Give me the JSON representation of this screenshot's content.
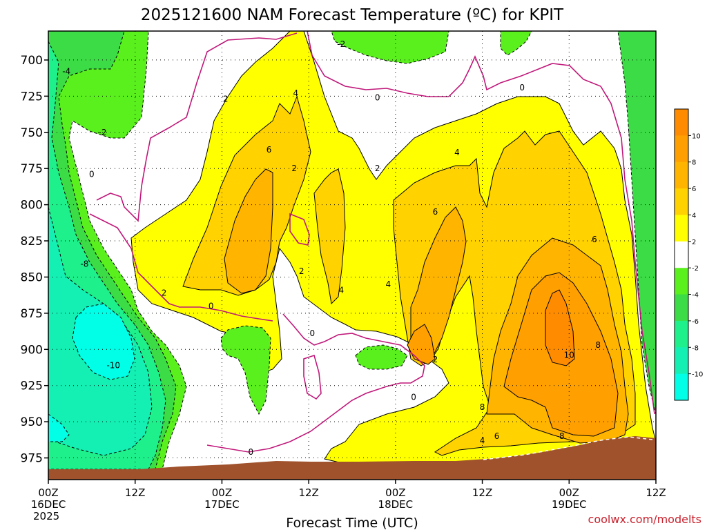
{
  "chart_data": {
    "type": "heatmap",
    "title": "2025121600 NAM Forecast Temperature (ºC) for KPIT",
    "xlabel": "Forecast Time (UTC)",
    "ylabel": "",
    "credit": "coolwx.com/modelts",
    "x_ticks": [
      {
        "hour": 0,
        "line1": "00Z",
        "line2": "16DEC",
        "line3": "2025"
      },
      {
        "hour": 12,
        "line1": "12Z",
        "line2": "",
        "line3": ""
      },
      {
        "hour": 24,
        "line1": "00Z",
        "line2": "17DEC",
        "line3": ""
      },
      {
        "hour": 36,
        "line1": "12Z",
        "line2": "",
        "line3": ""
      },
      {
        "hour": 48,
        "line1": "00Z",
        "line2": "18DEC",
        "line3": ""
      },
      {
        "hour": 60,
        "line1": "12Z",
        "line2": "",
        "line3": ""
      },
      {
        "hour": 72,
        "line1": "00Z",
        "line2": "19DEC",
        "line3": ""
      },
      {
        "hour": 84,
        "line1": "12Z",
        "line2": "",
        "line3": ""
      }
    ],
    "xlim": [
      0,
      84
    ],
    "y_ticks": [
      700,
      725,
      750,
      775,
      800,
      825,
      850,
      875,
      900,
      925,
      950,
      975
    ],
    "ylim": [
      990,
      680
    ],
    "colorbar": {
      "labels": [
        10,
        8,
        6,
        4,
        2,
        -2,
        -4,
        -6,
        -8,
        -10
      ],
      "bands": [
        {
          "from": 10,
          "to": 12,
          "color": "#ff8c00"
        },
        {
          "from": 8,
          "to": 10,
          "color": "#ffa000"
        },
        {
          "from": 6,
          "to": 8,
          "color": "#ffb400"
        },
        {
          "from": 4,
          "to": 6,
          "color": "#ffd200"
        },
        {
          "from": 2,
          "to": 4,
          "color": "#ffff00"
        },
        {
          "from": -2,
          "to": 2,
          "color": "#ffffff"
        },
        {
          "from": -4,
          "to": -2,
          "color": "#5af01e"
        },
        {
          "from": -6,
          "to": -4,
          "color": "#3cdc46"
        },
        {
          "from": -8,
          "to": -6,
          "color": "#1ef08c"
        },
        {
          "from": -10,
          "to": -8,
          "color": "#14f0b4"
        },
        {
          "from": -12,
          "to": -10,
          "color": "#00ffe6"
        }
      ]
    },
    "contour_labels": [
      {
        "text": "-2",
        "x": 40.5,
        "y": 689
      },
      {
        "text": "-4",
        "x": 2.5,
        "y": 708
      },
      {
        "text": "0",
        "x": 45.5,
        "y": 726
      },
      {
        "text": "0",
        "x": 65.5,
        "y": 719
      },
      {
        "text": "2",
        "x": 24.5,
        "y": 727
      },
      {
        "text": "4",
        "x": 34.2,
        "y": 723
      },
      {
        "text": "-2",
        "x": 7.5,
        "y": 750
      },
      {
        "text": "6",
        "x": 30.5,
        "y": 762
      },
      {
        "text": "0",
        "x": 6,
        "y": 779
      },
      {
        "text": "2",
        "x": 34,
        "y": 775
      },
      {
        "text": "2",
        "x": 45.5,
        "y": 775
      },
      {
        "text": "4",
        "x": 56.5,
        "y": 764
      },
      {
        "text": "6",
        "x": 53.5,
        "y": 805
      },
      {
        "text": "2",
        "x": 35,
        "y": 846
      },
      {
        "text": "6",
        "x": 75.5,
        "y": 824
      },
      {
        "text": "-8",
        "x": 5,
        "y": 841
      },
      {
        "text": "4",
        "x": 47,
        "y": 855
      },
      {
        "text": "2",
        "x": 16,
        "y": 861
      },
      {
        "text": "4",
        "x": 40.5,
        "y": 859
      },
      {
        "text": "0",
        "x": 22.5,
        "y": 870
      },
      {
        "text": "0",
        "x": 36.5,
        "y": 889
      },
      {
        "text": "8",
        "x": 76,
        "y": 897
      },
      {
        "text": "10",
        "x": 72,
        "y": 904
      },
      {
        "text": "2",
        "x": 53.5,
        "y": 907
      },
      {
        "text": "-10",
        "x": 9,
        "y": 911
      },
      {
        "text": "0",
        "x": 50.5,
        "y": 933
      },
      {
        "text": "8",
        "x": 60,
        "y": 940
      },
      {
        "text": "8",
        "x": 71,
        "y": 960
      },
      {
        "text": "4",
        "x": 60,
        "y": 963
      },
      {
        "text": "6",
        "x": 62,
        "y": 960
      },
      {
        "text": "0",
        "x": 28,
        "y": 971
      }
    ]
  }
}
